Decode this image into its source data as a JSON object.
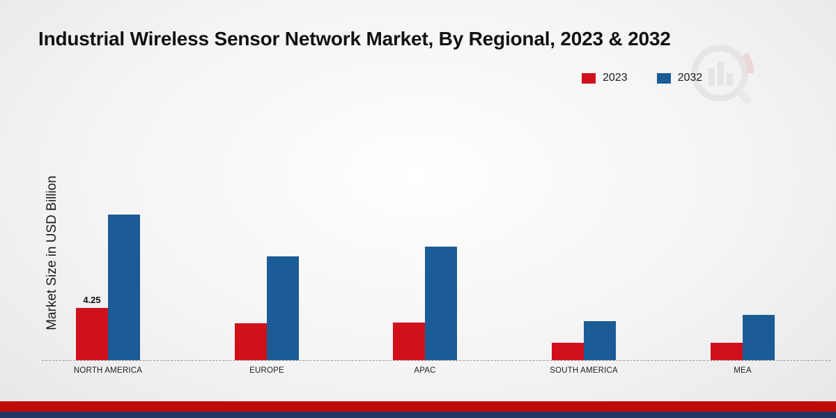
{
  "title": "Industrial Wireless Sensor Network Market, By Regional, 2023 & 2032",
  "ylabel": "Market Size in USD Billion",
  "legend": {
    "items": [
      {
        "label": "2023",
        "color": "#d0111b"
      },
      {
        "label": "2032",
        "color": "#1b5c96"
      }
    ],
    "position": "top-right"
  },
  "colors": {
    "series_2023": "#d0111b",
    "series_2032": "#1b5c96",
    "bottom_strip_red": "#c00a0a",
    "bottom_strip_navy": "#1f3864",
    "baseline_dash": "#9a9a9a"
  },
  "chart_data": {
    "type": "bar",
    "categories": [
      "NORTH AMERICA",
      "EUROPE",
      "APAC",
      "SOUTH AMERICA",
      "MEA"
    ],
    "series": [
      {
        "name": "2023",
        "color": "#d0111b",
        "values": [
          4.25,
          3.0,
          3.1,
          1.4,
          1.4
        ],
        "value_labels": [
          "4.25",
          "",
          "",
          "",
          ""
        ]
      },
      {
        "name": "2032",
        "color": "#1b5c96",
        "values": [
          11.9,
          8.5,
          9.3,
          3.2,
          3.7
        ],
        "value_labels": [
          "",
          "",
          "",
          "",
          ""
        ]
      }
    ],
    "title": "Industrial Wireless Sensor Network Market, By Regional, 2023 & 2032",
    "xlabel": "",
    "ylabel": "Market Size in USD Billion",
    "ylim": [
      0,
      12.5
    ],
    "grid": false,
    "baseline": "dashed",
    "legend_position": "top-right",
    "annotations": [
      "4.25 labeled above North America 2023 bar"
    ]
  },
  "watermark": {
    "name": "chart-logo-watermark"
  }
}
